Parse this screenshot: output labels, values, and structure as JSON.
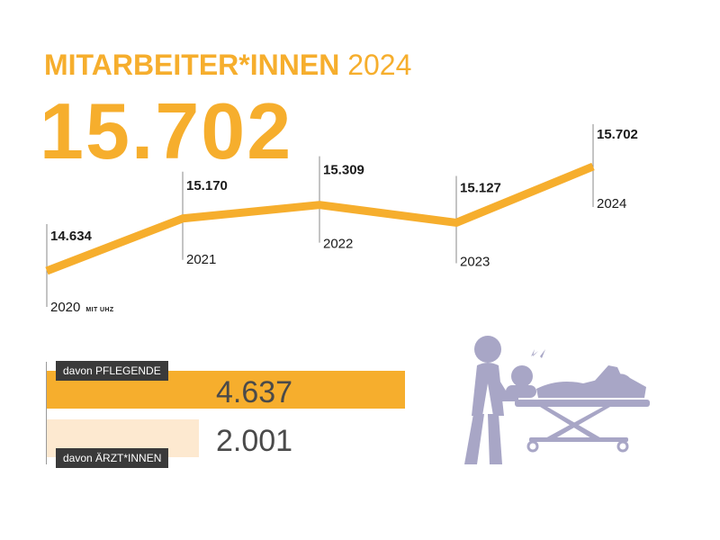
{
  "header": {
    "title": "MITARBEITER*INNEN",
    "title_year": "2024",
    "headline_value": "15.702"
  },
  "colors": {
    "accent": "#f6ae2d",
    "accent_light": "#fde9d0",
    "label_bg": "#3a3a3a",
    "text_dark": "#1a1a1a",
    "illustration": "#a8a6c6"
  },
  "chart_data": [
    {
      "type": "line",
      "title": "",
      "x": [
        "2020",
        "2021",
        "2022",
        "2023",
        "2024"
      ],
      "y": [
        14634,
        15170,
        15309,
        15127,
        15702
      ],
      "value_labels": [
        "14.634",
        "15.170",
        "15.309",
        "15.127",
        "15.702"
      ],
      "x_labels": [
        "2020",
        "2021",
        "2022",
        "2023",
        "2024"
      ],
      "first_point_note": "MIT UHZ",
      "ylim": [
        14634,
        15702
      ],
      "grid": false,
      "legend": "none"
    },
    {
      "type": "bar",
      "orientation": "horizontal",
      "categories": [
        "davon PFLEGENDE",
        "davon ÄRZT*INNEN"
      ],
      "values": [
        4637,
        2001
      ],
      "value_labels": [
        "4.637",
        "2.001"
      ]
    }
  ],
  "illustration": {
    "icon": "patient-stretcher-icon"
  }
}
